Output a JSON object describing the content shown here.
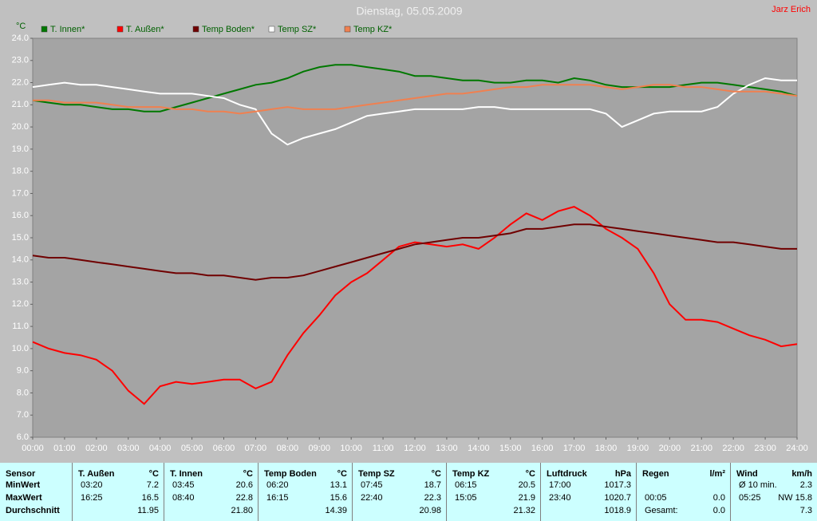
{
  "chart_data": {
    "type": "line",
    "title": "Dienstag, 05.05.2009",
    "author": "Jarz Erich",
    "y_label": "°C",
    "xlim": [
      0,
      24
    ],
    "ylim": [
      6,
      24
    ],
    "grid": false,
    "xticks": [
      {
        "value": 0,
        "label": "00:00"
      },
      {
        "value": 1,
        "label": "01:00"
      },
      {
        "value": 2,
        "label": "02:00"
      },
      {
        "value": 3,
        "label": "03:00"
      },
      {
        "value": 4,
        "label": "04:00"
      },
      {
        "value": 5,
        "label": "05:00"
      },
      {
        "value": 6,
        "label": "06:00"
      },
      {
        "value": 7,
        "label": "07:00"
      },
      {
        "value": 8,
        "label": "08:00"
      },
      {
        "value": 9,
        "label": "09:00"
      },
      {
        "value": 10,
        "label": "10:00"
      },
      {
        "value": 11,
        "label": "11:00"
      },
      {
        "value": 12,
        "label": "12:00"
      },
      {
        "value": 13,
        "label": "13:00"
      },
      {
        "value": 14,
        "label": "14:00"
      },
      {
        "value": 15,
        "label": "15:00"
      },
      {
        "value": 16,
        "label": "16:00"
      },
      {
        "value": 17,
        "label": "17:00"
      },
      {
        "value": 18,
        "label": "18:00"
      },
      {
        "value": 19,
        "label": "19:00"
      },
      {
        "value": 20,
        "label": "20:00"
      },
      {
        "value": 21,
        "label": "21:00"
      },
      {
        "value": 22,
        "label": "22:00"
      },
      {
        "value": 23,
        "label": "23:00"
      },
      {
        "value": 24,
        "label": "24:00"
      }
    ],
    "yticks": [
      {
        "value": 6,
        "label": "6.0"
      },
      {
        "value": 7,
        "label": "7.0"
      },
      {
        "value": 8,
        "label": "8.0"
      },
      {
        "value": 9,
        "label": "9.0"
      },
      {
        "value": 10,
        "label": "10.0"
      },
      {
        "value": 11,
        "label": "11.0"
      },
      {
        "value": 12,
        "label": "12.0"
      },
      {
        "value": 13,
        "label": "13.0"
      },
      {
        "value": 14,
        "label": "14.0"
      },
      {
        "value": 15,
        "label": "15.0"
      },
      {
        "value": 16,
        "label": "16.0"
      },
      {
        "value": 17,
        "label": "17.0"
      },
      {
        "value": 18,
        "label": "18.0"
      },
      {
        "value": 19,
        "label": "19.0"
      },
      {
        "value": 20,
        "label": "20.0"
      },
      {
        "value": 21,
        "label": "21.0"
      },
      {
        "value": 22,
        "label": "22.0"
      },
      {
        "value": 23,
        "label": "23.0"
      },
      {
        "value": 24,
        "label": "24.0"
      }
    ],
    "x": [
      0,
      0.5,
      1,
      1.5,
      2,
      2.5,
      3,
      3.5,
      4,
      4.5,
      5,
      5.5,
      6,
      6.5,
      7,
      7.5,
      8,
      8.5,
      9,
      9.5,
      10,
      10.5,
      11,
      11.5,
      12,
      12.5,
      13,
      13.5,
      14,
      14.5,
      15,
      15.5,
      16,
      16.5,
      17,
      17.5,
      18,
      18.5,
      19,
      19.5,
      20,
      20.5,
      21,
      21.5,
      22,
      22.5,
      23,
      23.5,
      24
    ],
    "series": [
      {
        "name": "T. Innen*",
        "color": "#007800",
        "values": [
          21.2,
          21.1,
          21.0,
          21.0,
          20.9,
          20.8,
          20.8,
          20.7,
          20.7,
          20.9,
          21.1,
          21.3,
          21.5,
          21.7,
          21.9,
          22.0,
          22.2,
          22.5,
          22.7,
          22.8,
          22.8,
          22.7,
          22.6,
          22.5,
          22.3,
          22.3,
          22.2,
          22.1,
          22.1,
          22.0,
          22.0,
          22.1,
          22.1,
          22.0,
          22.2,
          22.1,
          21.9,
          21.8,
          21.8,
          21.8,
          21.8,
          21.9,
          22.0,
          22.0,
          21.9,
          21.8,
          21.7,
          21.6,
          21.4
        ]
      },
      {
        "name": "T. Außen*",
        "color": "#ff0000",
        "values": [
          10.3,
          10.0,
          9.8,
          9.7,
          9.5,
          9.0,
          8.1,
          7.5,
          8.3,
          8.5,
          8.4,
          8.5,
          8.6,
          8.6,
          8.2,
          8.5,
          9.7,
          10.7,
          11.5,
          12.4,
          13.0,
          13.4,
          14.0,
          14.6,
          14.8,
          14.7,
          14.6,
          14.7,
          14.5,
          15.0,
          15.6,
          16.1,
          15.8,
          16.2,
          16.4,
          16.0,
          15.4,
          15.0,
          14.5,
          13.4,
          12.0,
          11.3,
          11.3,
          11.2,
          10.9,
          10.6,
          10.4,
          10.1,
          10.2
        ]
      },
      {
        "name": "Temp Boden*",
        "color": "#700000",
        "values": [
          14.2,
          14.1,
          14.1,
          14.0,
          13.9,
          13.8,
          13.7,
          13.6,
          13.5,
          13.4,
          13.4,
          13.3,
          13.3,
          13.2,
          13.1,
          13.2,
          13.2,
          13.3,
          13.5,
          13.7,
          13.9,
          14.1,
          14.3,
          14.5,
          14.7,
          14.8,
          14.9,
          15.0,
          15.0,
          15.1,
          15.2,
          15.4,
          15.4,
          15.5,
          15.6,
          15.6,
          15.5,
          15.4,
          15.3,
          15.2,
          15.1,
          15.0,
          14.9,
          14.8,
          14.8,
          14.7,
          14.6,
          14.5,
          14.5
        ]
      },
      {
        "name": "Temp SZ*",
        "color": "#ffffff",
        "values": [
          21.8,
          21.9,
          22.0,
          21.9,
          21.9,
          21.8,
          21.7,
          21.6,
          21.5,
          21.5,
          21.5,
          21.4,
          21.3,
          21.0,
          20.8,
          19.7,
          19.2,
          19.5,
          19.7,
          19.9,
          20.2,
          20.5,
          20.6,
          20.7,
          20.8,
          20.8,
          20.8,
          20.8,
          20.9,
          20.9,
          20.8,
          20.8,
          20.8,
          20.8,
          20.8,
          20.8,
          20.6,
          20.0,
          20.3,
          20.6,
          20.7,
          20.7,
          20.7,
          20.9,
          21.5,
          21.9,
          22.2,
          22.1,
          22.1
        ]
      },
      {
        "name": "Temp KZ*",
        "color": "#f08050",
        "values": [
          21.2,
          21.2,
          21.1,
          21.1,
          21.1,
          21.0,
          20.9,
          20.9,
          20.9,
          20.8,
          20.8,
          20.7,
          20.7,
          20.6,
          20.7,
          20.8,
          20.9,
          20.8,
          20.8,
          20.8,
          20.9,
          21.0,
          21.1,
          21.2,
          21.3,
          21.4,
          21.5,
          21.5,
          21.6,
          21.7,
          21.8,
          21.8,
          21.9,
          21.9,
          21.9,
          21.9,
          21.8,
          21.7,
          21.8,
          21.9,
          21.9,
          21.8,
          21.8,
          21.7,
          21.6,
          21.6,
          21.6,
          21.5,
          21.4
        ]
      }
    ]
  },
  "table": {
    "columns": [
      {
        "header": "Sensor",
        "rows": [
          {
            "label": "MinWert"
          },
          {
            "label": "MaxWert"
          },
          {
            "label": "Durchschnitt"
          }
        ]
      },
      {
        "header": "T. Außen",
        "unit": "°C",
        "rows": [
          {
            "time": "03:20",
            "value": "7.2"
          },
          {
            "time": "16:25",
            "value": "16.5"
          },
          {
            "value": "11.95"
          }
        ]
      },
      {
        "header": "T. Innen",
        "unit": "°C",
        "rows": [
          {
            "time": "03:45",
            "value": "20.6"
          },
          {
            "time": "08:40",
            "value": "22.8"
          },
          {
            "value": "21.80"
          }
        ]
      },
      {
        "header": "Temp Boden",
        "unit": "°C",
        "rows": [
          {
            "time": "06:20",
            "value": "13.1"
          },
          {
            "time": "16:15",
            "value": "15.6"
          },
          {
            "value": "14.39"
          }
        ]
      },
      {
        "header": "Temp SZ",
        "unit": "°C",
        "rows": [
          {
            "time": "07:45",
            "value": "18.7"
          },
          {
            "time": "22:40",
            "value": "22.3"
          },
          {
            "value": "20.98"
          }
        ]
      },
      {
        "header": "Temp KZ",
        "unit": "°C",
        "rows": [
          {
            "time": "06:15",
            "value": "20.5"
          },
          {
            "time": "15:05",
            "value": "21.9"
          },
          {
            "value": "21.32"
          }
        ]
      },
      {
        "header": "Luftdruck",
        "unit": "hPa",
        "rows": [
          {
            "time": "17:00",
            "value": "1017.3"
          },
          {
            "time": "23:40",
            "value": "1020.7"
          },
          {
            "value": "1018.9"
          }
        ]
      },
      {
        "header": "Regen",
        "unit": "l/m²",
        "rows": [
          {},
          {
            "time": "00:05",
            "value": "0.0"
          },
          {
            "time": "Gesamt:",
            "value": "0.0"
          }
        ]
      },
      {
        "header": "Wind",
        "unit": "km/h",
        "rows": [
          {
            "time": "Ø 10 min.",
            "value": "2.3"
          },
          {
            "time": "05:25",
            "value": "NW 15.8"
          },
          {
            "value": "7.3"
          }
        ]
      }
    ]
  }
}
